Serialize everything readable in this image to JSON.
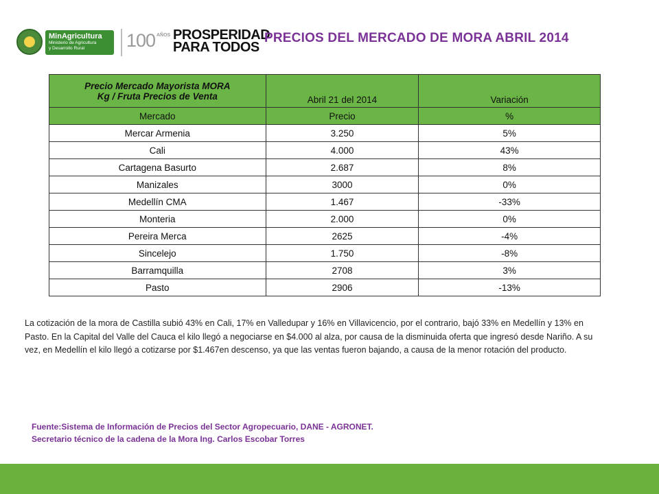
{
  "header": {
    "ministry": {
      "name": "MinAgricultura",
      "subtitle_line1": "Ministerio de Agricultura",
      "subtitle_line2": "y Desarrollo Rural"
    },
    "anniversary": {
      "number": "100",
      "suffix": "AÑOS"
    },
    "slogan": {
      "line1": "PROSPERIDAD",
      "line2": "PARA TODOS"
    },
    "title": "PRECIOS DEL MERCADO DE MORA ABRIL 2014"
  },
  "table": {
    "header_title_line1": "Precio Mercado  Mayorista   MORA",
    "header_title_line2": "Kg / Fruta Precios de Venta",
    "header_date": "Abril 21 del 2014",
    "header_variation": "Variación",
    "subheaders": [
      "Mercado",
      "Precio",
      "%"
    ],
    "rows": [
      {
        "market": "Mercar Armenia",
        "price": "3.250",
        "variation": "5%"
      },
      {
        "market": "Cali",
        "price": "4.000",
        "variation": "43%"
      },
      {
        "market": "Cartagena  Basurto",
        "price": "2.687",
        "variation": "8%"
      },
      {
        "market": "Manizales",
        "price": "3000",
        "variation": "0%"
      },
      {
        "market": "Medellín  CMA",
        "price": "1.467",
        "variation": "-33%"
      },
      {
        "market": "Monteria",
        "price": "2.000",
        "variation": "0%"
      },
      {
        "market": "Pereira  Merca",
        "price": "2625",
        "variation": "-4%"
      },
      {
        "market": "Sincelejo",
        "price": "1.750",
        "variation": "-8%"
      },
      {
        "market": "Barramquilla",
        "price": "2708",
        "variation": "3%"
      },
      {
        "market": "Pasto",
        "price": "2906",
        "variation": "-13%"
      }
    ]
  },
  "paragraph": "La cotización de la mora de Castilla  subió 43% en Cali, 17% en Valledupar y 16% en Villavicencio, por el contrario, bajó 33% en Medellín y 13% en Pasto. En la Capital del Valle del Cauca el kilo llegó a negociarse en $4.000 al alza, por causa de la disminuida oferta que ingresó desde Nariño. A su vez, en Medellín el kilo llegó a cotizarse por $1.467en descenso, ya que las ventas fueron bajando, a causa de la menor rotación del producto.",
  "source": {
    "line1": "Fuente:Sistema de Información de Precios del Sector Agropecuario,  DANE - AGRONET.",
    "line2": "Secretario técnico de la cadena de la Mora  Ing. Carlos Escobar Torres"
  },
  "colors": {
    "accent_green": "#6ab545",
    "title_purple": "#7a3296",
    "footer_green": "#6ab13d"
  }
}
